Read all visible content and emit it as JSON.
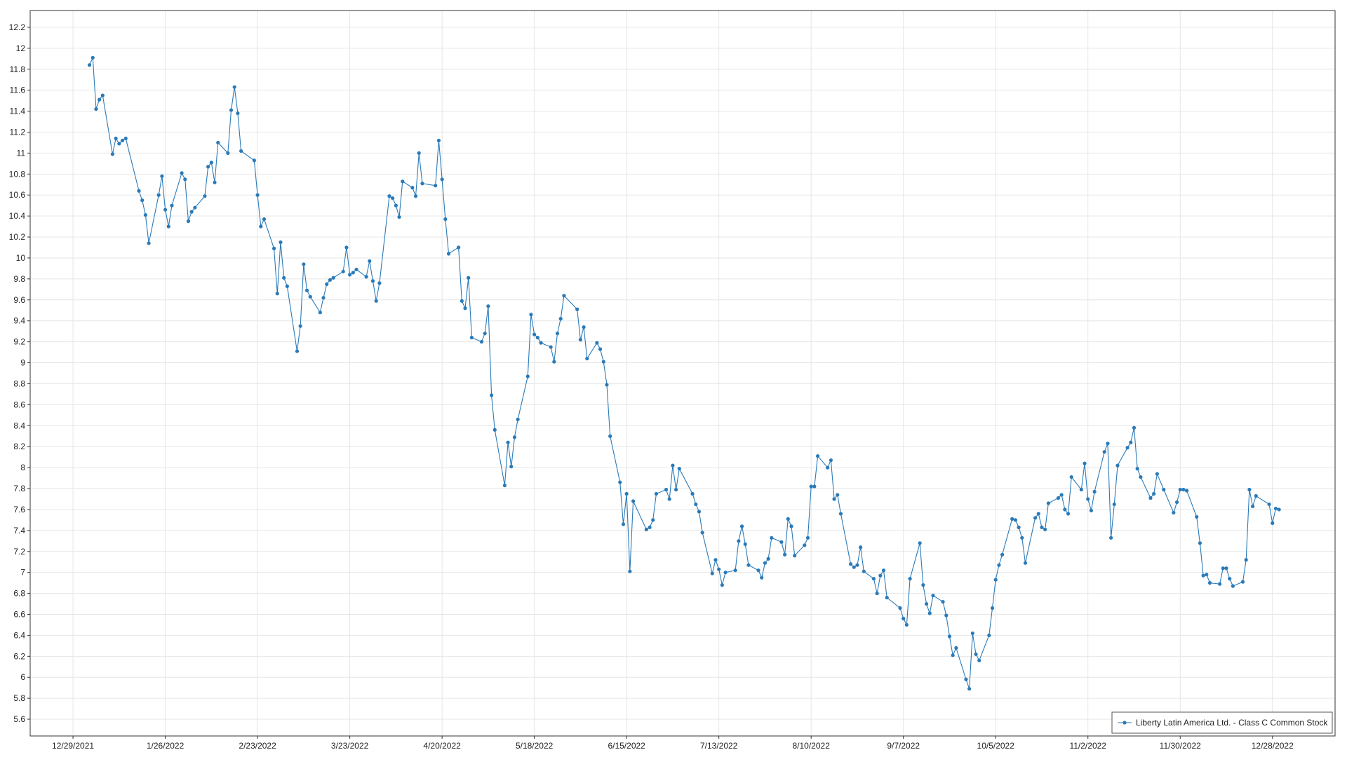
{
  "chart_data": {
    "type": "line",
    "x": [
      "1/3/2022",
      "1/4/2022",
      "1/5/2022",
      "1/6/2022",
      "1/7/2022",
      "1/10/2022",
      "1/11/2022",
      "1/12/2022",
      "1/13/2022",
      "1/14/2022",
      "1/18/2022",
      "1/19/2022",
      "1/20/2022",
      "1/21/2022",
      "1/24/2022",
      "1/25/2022",
      "1/26/2022",
      "1/27/2022",
      "1/28/2022",
      "1/31/2022",
      "2/1/2022",
      "2/2/2022",
      "2/3/2022",
      "2/4/2022",
      "2/7/2022",
      "2/8/2022",
      "2/9/2022",
      "2/10/2022",
      "2/11/2022",
      "2/14/2022",
      "2/15/2022",
      "2/16/2022",
      "2/17/2022",
      "2/18/2022",
      "2/22/2022",
      "2/23/2022",
      "2/24/2022",
      "2/25/2022",
      "2/28/2022",
      "3/1/2022",
      "3/2/2022",
      "3/3/2022",
      "3/4/2022",
      "3/7/2022",
      "3/8/2022",
      "3/9/2022",
      "3/10/2022",
      "3/11/2022",
      "3/14/2022",
      "3/15/2022",
      "3/16/2022",
      "3/17/2022",
      "3/18/2022",
      "3/21/2022",
      "3/22/2022",
      "3/23/2022",
      "3/24/2022",
      "3/25/2022",
      "3/28/2022",
      "3/29/2022",
      "3/30/2022",
      "3/31/2022",
      "4/1/2022",
      "4/4/2022",
      "4/5/2022",
      "4/6/2022",
      "4/7/2022",
      "4/8/2022",
      "4/11/2022",
      "4/12/2022",
      "4/13/2022",
      "4/14/2022",
      "4/18/2022",
      "4/19/2022",
      "4/20/2022",
      "4/21/2022",
      "4/22/2022",
      "4/25/2022",
      "4/26/2022",
      "4/27/2022",
      "4/28/2022",
      "4/29/2022",
      "5/2/2022",
      "5/3/2022",
      "5/4/2022",
      "5/5/2022",
      "5/6/2022",
      "5/9/2022",
      "5/10/2022",
      "5/11/2022",
      "5/12/2022",
      "5/13/2022",
      "5/16/2022",
      "5/17/2022",
      "5/18/2022",
      "5/19/2022",
      "5/20/2022",
      "5/23/2022",
      "5/24/2022",
      "5/25/2022",
      "5/26/2022",
      "5/27/2022",
      "5/31/2022",
      "6/1/2022",
      "6/2/2022",
      "6/3/2022",
      "6/6/2022",
      "6/7/2022",
      "6/8/2022",
      "6/9/2022",
      "6/10/2022",
      "6/13/2022",
      "6/14/2022",
      "6/15/2022",
      "6/16/2022",
      "6/17/2022",
      "6/21/2022",
      "6/22/2022",
      "6/23/2022",
      "6/24/2022",
      "6/27/2022",
      "6/28/2022",
      "6/29/2022",
      "6/30/2022",
      "7/1/2022",
      "7/5/2022",
      "7/6/2022",
      "7/7/2022",
      "7/8/2022",
      "7/11/2022",
      "7/12/2022",
      "7/13/2022",
      "7/14/2022",
      "7/15/2022",
      "7/18/2022",
      "7/19/2022",
      "7/20/2022",
      "7/21/2022",
      "7/22/2022",
      "7/25/2022",
      "7/26/2022",
      "7/27/2022",
      "7/28/2022",
      "7/29/2022",
      "8/1/2022",
      "8/2/2022",
      "8/3/2022",
      "8/4/2022",
      "8/5/2022",
      "8/8/2022",
      "8/9/2022",
      "8/10/2022",
      "8/11/2022",
      "8/12/2022",
      "8/15/2022",
      "8/16/2022",
      "8/17/2022",
      "8/18/2022",
      "8/19/2022",
      "8/22/2022",
      "8/23/2022",
      "8/24/2022",
      "8/25/2022",
      "8/26/2022",
      "8/29/2022",
      "8/30/2022",
      "8/31/2022",
      "9/1/2022",
      "9/2/2022",
      "9/6/2022",
      "9/7/2022",
      "9/8/2022",
      "9/9/2022",
      "9/12/2022",
      "9/13/2022",
      "9/14/2022",
      "9/15/2022",
      "9/16/2022",
      "9/19/2022",
      "9/20/2022",
      "9/21/2022",
      "9/22/2022",
      "9/23/2022",
      "9/26/2022",
      "9/27/2022",
      "9/28/2022",
      "9/29/2022",
      "9/30/2022",
      "10/3/2022",
      "10/4/2022",
      "10/5/2022",
      "10/6/2022",
      "10/7/2022",
      "10/10/2022",
      "10/11/2022",
      "10/12/2022",
      "10/13/2022",
      "10/14/2022",
      "10/17/2022",
      "10/18/2022",
      "10/19/2022",
      "10/20/2022",
      "10/21/2022",
      "10/24/2022",
      "10/25/2022",
      "10/26/2022",
      "10/27/2022",
      "10/28/2022",
      "10/31/2022",
      "11/1/2022",
      "11/2/2022",
      "11/3/2022",
      "11/4/2022",
      "11/7/2022",
      "11/8/2022",
      "11/9/2022",
      "11/10/2022",
      "11/11/2022",
      "11/14/2022",
      "11/15/2022",
      "11/16/2022",
      "11/17/2022",
      "11/18/2022",
      "11/21/2022",
      "11/22/2022",
      "11/23/2022",
      "11/25/2022",
      "11/28/2022",
      "11/29/2022",
      "11/30/2022",
      "12/1/2022",
      "12/2/2022",
      "12/5/2022",
      "12/6/2022",
      "12/7/2022",
      "12/8/2022",
      "12/9/2022",
      "12/12/2022",
      "12/13/2022",
      "12/14/2022",
      "12/15/2022",
      "12/16/2022",
      "12/19/2022",
      "12/20/2022",
      "12/21/2022",
      "12/22/2022",
      "12/23/2022",
      "12/27/2022",
      "12/28/2022",
      "12/29/2022",
      "12/30/2022"
    ],
    "series": [
      {
        "name": "Liberty Latin America Ltd. - Class C Common Stock",
        "color": "#2a7ab8",
        "values": [
          11.84,
          11.91,
          11.42,
          11.51,
          11.55,
          10.99,
          11.14,
          11.09,
          11.12,
          11.14,
          10.64,
          10.55,
          10.41,
          10.14,
          10.6,
          10.78,
          10.46,
          10.3,
          10.5,
          10.81,
          10.75,
          10.35,
          10.44,
          10.48,
          10.59,
          10.87,
          10.91,
          10.72,
          11.1,
          11.0,
          11.41,
          11.63,
          11.38,
          11.02,
          10.93,
          10.6,
          10.3,
          10.37,
          10.09,
          9.66,
          10.15,
          9.81,
          9.73,
          9.11,
          9.35,
          9.94,
          9.69,
          9.63,
          9.48,
          9.62,
          9.75,
          9.79,
          9.81,
          9.87,
          10.1,
          9.84,
          9.86,
          9.89,
          9.82,
          9.97,
          9.78,
          9.59,
          9.76,
          10.59,
          10.57,
          10.5,
          10.39,
          10.73,
          10.67,
          10.59,
          11.0,
          10.71,
          10.69,
          11.12,
          10.75,
          10.37,
          10.04,
          10.1,
          9.59,
          9.52,
          9.81,
          9.24,
          9.2,
          9.28,
          9.54,
          8.69,
          8.36,
          7.83,
          8.24,
          8.01,
          8.29,
          8.46,
          8.87,
          9.46,
          9.27,
          9.24,
          9.19,
          9.15,
          9.01,
          9.28,
          9.42,
          9.64,
          9.51,
          9.22,
          9.34,
          9.04,
          9.19,
          9.13,
          9.01,
          8.79,
          8.3,
          7.86,
          7.46,
          7.75,
          7.01,
          7.68,
          7.41,
          7.43,
          7.5,
          7.75,
          7.79,
          7.7,
          8.02,
          7.79,
          7.99,
          7.75,
          7.65,
          7.58,
          7.38,
          6.99,
          7.12,
          7.03,
          6.88,
          7.0,
          7.02,
          7.3,
          7.44,
          7.27,
          7.07,
          7.02,
          6.95,
          7.09,
          7.13,
          7.33,
          7.29,
          7.17,
          7.51,
          7.44,
          7.16,
          7.26,
          7.33,
          7.82,
          7.82,
          8.11,
          8.0,
          8.07,
          7.7,
          7.74,
          7.56,
          7.08,
          7.05,
          7.07,
          7.24,
          7.01,
          6.94,
          6.8,
          6.97,
          7.02,
          6.76,
          6.66,
          6.56,
          6.5,
          6.94,
          7.28,
          6.88,
          6.7,
          6.61,
          6.78,
          6.72,
          6.59,
          6.39,
          6.21,
          6.28,
          5.98,
          5.89,
          6.42,
          6.22,
          6.16,
          6.4,
          6.66,
          6.93,
          7.07,
          7.17,
          7.51,
          7.5,
          7.43,
          7.33,
          7.09,
          7.52,
          7.56,
          7.43,
          7.41,
          7.66,
          7.71,
          7.74,
          7.6,
          7.56,
          7.91,
          7.79,
          8.04,
          7.7,
          7.59,
          7.77,
          8.15,
          8.23,
          7.33,
          7.65,
          8.02,
          8.19,
          8.24,
          8.38,
          7.99,
          7.91,
          7.71,
          7.75,
          7.94,
          7.79,
          7.57,
          7.67,
          7.79,
          7.79,
          7.78,
          7.53,
          7.28,
          6.97,
          6.98,
          6.9,
          6.89,
          7.04,
          7.04,
          6.94,
          6.87,
          6.91,
          7.12,
          7.79,
          7.63,
          7.73,
          7.65,
          7.47,
          7.61,
          7.6
        ]
      }
    ],
    "xlim": [
      "12/16/2021",
      "1/16/2023"
    ],
    "xticks": [
      "12/29/2021",
      "1/26/2022",
      "2/23/2022",
      "3/23/2022",
      "4/20/2022",
      "5/18/2022",
      "6/15/2022",
      "7/13/2022",
      "8/10/2022",
      "9/7/2022",
      "10/5/2022",
      "11/2/2022",
      "11/30/2022",
      "12/28/2022"
    ],
    "ylim": [
      5.44,
      12.36
    ],
    "yticks": [
      5.6,
      5.8,
      6,
      6.2,
      6.4,
      6.6,
      6.8,
      7,
      7.2,
      7.4,
      7.6,
      7.8,
      8,
      8.2,
      8.4,
      8.6,
      8.8,
      9,
      9.2,
      9.4,
      9.6,
      9.8,
      10,
      10.2,
      10.4,
      10.6,
      10.8,
      11,
      11.2,
      11.4,
      11.6,
      11.8,
      12,
      12.2
    ],
    "grid": true,
    "legend": "lower right"
  }
}
